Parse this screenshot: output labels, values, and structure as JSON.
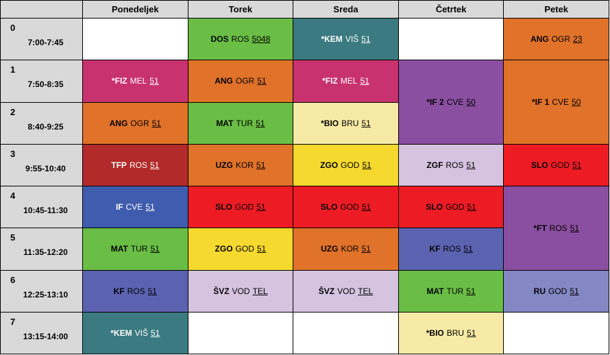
{
  "days": [
    "Ponedeljek",
    "Torek",
    "Sreda",
    "Četrtek",
    "Petek"
  ],
  "periods": [
    {
      "num": "0",
      "time": "7:00-7:45"
    },
    {
      "num": "1",
      "time": "7:50-8:35"
    },
    {
      "num": "2",
      "time": "8:40-9:25"
    },
    {
      "num": "3",
      "time": "9:55-10:40"
    },
    {
      "num": "4",
      "time": "10:45-11:30"
    },
    {
      "num": "5",
      "time": "11:35-12:20"
    },
    {
      "num": "6",
      "time": "12:25-13:10"
    },
    {
      "num": "7",
      "time": "13:15-14:00"
    }
  ],
  "lessons": [
    {
      "day": 1,
      "period": 0,
      "span": 1,
      "subject": "DOS",
      "teacher": "ROS",
      "room": "5048",
      "color": "#6abd45",
      "text_color": "#000000"
    },
    {
      "day": 2,
      "period": 0,
      "span": 1,
      "subject": "*KEM",
      "teacher": "VIŠ",
      "room": "51",
      "color": "#3b7a80",
      "text_color": "#ffffff"
    },
    {
      "day": 4,
      "period": 0,
      "span": 1,
      "subject": "ANG",
      "teacher": "OGR",
      "room": "23",
      "color": "#e07229",
      "text_color": "#000000"
    },
    {
      "day": 0,
      "period": 1,
      "span": 1,
      "subject": "*FIZ",
      "teacher": "MEL",
      "room": "51",
      "color": "#c8326e",
      "text_color": "#ffffff"
    },
    {
      "day": 1,
      "period": 1,
      "span": 1,
      "subject": "ANG",
      "teacher": "OGR",
      "room": "51",
      "color": "#e07229",
      "text_color": "#000000"
    },
    {
      "day": 2,
      "period": 1,
      "span": 1,
      "subject": "*FIZ",
      "teacher": "MEL",
      "room": "51",
      "color": "#c8326e",
      "text_color": "#ffffff"
    },
    {
      "day": 3,
      "period": 1,
      "span": 2,
      "subject": "*IF 2",
      "teacher": "CVE",
      "room": "50",
      "color": "#8a4fa0",
      "text_color": "#000000"
    },
    {
      "day": 4,
      "period": 1,
      "span": 2,
      "subject": "*IF 1",
      "teacher": "CVE",
      "room": "50",
      "color": "#e07229",
      "text_color": "#000000"
    },
    {
      "day": 0,
      "period": 2,
      "span": 1,
      "subject": "ANG",
      "teacher": "OGR",
      "room": "51",
      "color": "#e07229",
      "text_color": "#000000"
    },
    {
      "day": 1,
      "period": 2,
      "span": 1,
      "subject": "MAT",
      "teacher": "TUR",
      "room": "51",
      "color": "#6abd45",
      "text_color": "#000000"
    },
    {
      "day": 2,
      "period": 2,
      "span": 1,
      "subject": "*BIO",
      "teacher": "BRU",
      "room": "51",
      "color": "#f7eaa6",
      "text_color": "#000000"
    },
    {
      "day": 0,
      "period": 3,
      "span": 1,
      "subject": "TFP",
      "teacher": "ROS",
      "room": "51",
      "color": "#b22a2a",
      "text_color": "#ffffff"
    },
    {
      "day": 1,
      "period": 3,
      "span": 1,
      "subject": "UZG",
      "teacher": "KOR",
      "room": "51",
      "color": "#e07229",
      "text_color": "#000000"
    },
    {
      "day": 2,
      "period": 3,
      "span": 1,
      "subject": "ZGO",
      "teacher": "GOD",
      "room": "51",
      "color": "#f5d92e",
      "text_color": "#000000"
    },
    {
      "day": 3,
      "period": 3,
      "span": 1,
      "subject": "ZGF",
      "teacher": "ROS",
      "room": "51",
      "color": "#d5c3e0",
      "text_color": "#000000"
    },
    {
      "day": 4,
      "period": 3,
      "span": 1,
      "subject": "SLO",
      "teacher": "GOD",
      "room": "51",
      "color": "#ed1c24",
      "text_color": "#000000"
    },
    {
      "day": 0,
      "period": 4,
      "span": 1,
      "subject": "IF",
      "teacher": "CVE",
      "room": "51",
      "color": "#3f5cae",
      "text_color": "#ffffff"
    },
    {
      "day": 1,
      "period": 4,
      "span": 1,
      "subject": "SLO",
      "teacher": "GOD",
      "room": "51",
      "color": "#ed1c24",
      "text_color": "#000000"
    },
    {
      "day": 2,
      "period": 4,
      "span": 1,
      "subject": "SLO",
      "teacher": "GOD",
      "room": "51",
      "color": "#ed1c24",
      "text_color": "#000000"
    },
    {
      "day": 3,
      "period": 4,
      "span": 1,
      "subject": "SLO",
      "teacher": "GOD",
      "room": "51",
      "color": "#ed1c24",
      "text_color": "#000000"
    },
    {
      "day": 4,
      "period": 4,
      "span": 2,
      "subject": "*FT",
      "teacher": "ROS",
      "room": "51",
      "color": "#8a4fa0",
      "text_color": "#000000"
    },
    {
      "day": 0,
      "period": 5,
      "span": 1,
      "subject": "MAT",
      "teacher": "TUR",
      "room": "51",
      "color": "#6abd45",
      "text_color": "#000000"
    },
    {
      "day": 1,
      "period": 5,
      "span": 1,
      "subject": "ZGO",
      "teacher": "GOD",
      "room": "51",
      "color": "#f5d92e",
      "text_color": "#000000"
    },
    {
      "day": 2,
      "period": 5,
      "span": 1,
      "subject": "UZG",
      "teacher": "KOR",
      "room": "51",
      "color": "#e07229",
      "text_color": "#000000"
    },
    {
      "day": 3,
      "period": 5,
      "span": 1,
      "subject": "KF",
      "teacher": "ROS",
      "room": "51",
      "color": "#5b62b0",
      "text_color": "#000000"
    },
    {
      "day": 0,
      "period": 6,
      "span": 1,
      "subject": "KF",
      "teacher": "ROS",
      "room": "51",
      "color": "#5b62b0",
      "text_color": "#000000"
    },
    {
      "day": 1,
      "period": 6,
      "span": 1,
      "subject": "ŠVZ",
      "teacher": "VOD",
      "room": "TEL",
      "color": "#d5c3e0",
      "text_color": "#000000"
    },
    {
      "day": 2,
      "period": 6,
      "span": 1,
      "subject": "ŠVZ",
      "teacher": "VOD",
      "room": "TEL",
      "color": "#d5c3e0",
      "text_color": "#000000"
    },
    {
      "day": 3,
      "period": 6,
      "span": 1,
      "subject": "MAT",
      "teacher": "TUR",
      "room": "51",
      "color": "#6abd45",
      "text_color": "#000000"
    },
    {
      "day": 4,
      "period": 6,
      "span": 1,
      "subject": "RU",
      "teacher": "GOD",
      "room": "51",
      "color": "#8387c4",
      "text_color": "#000000"
    },
    {
      "day": 0,
      "period": 7,
      "span": 1,
      "subject": "*KEM",
      "teacher": "VIŠ",
      "room": "51",
      "color": "#3b7a80",
      "text_color": "#ffffff"
    },
    {
      "day": 3,
      "period": 7,
      "span": 1,
      "subject": "*BIO",
      "teacher": "BRU",
      "room": "51",
      "color": "#f7eaa6",
      "text_color": "#000000"
    }
  ]
}
